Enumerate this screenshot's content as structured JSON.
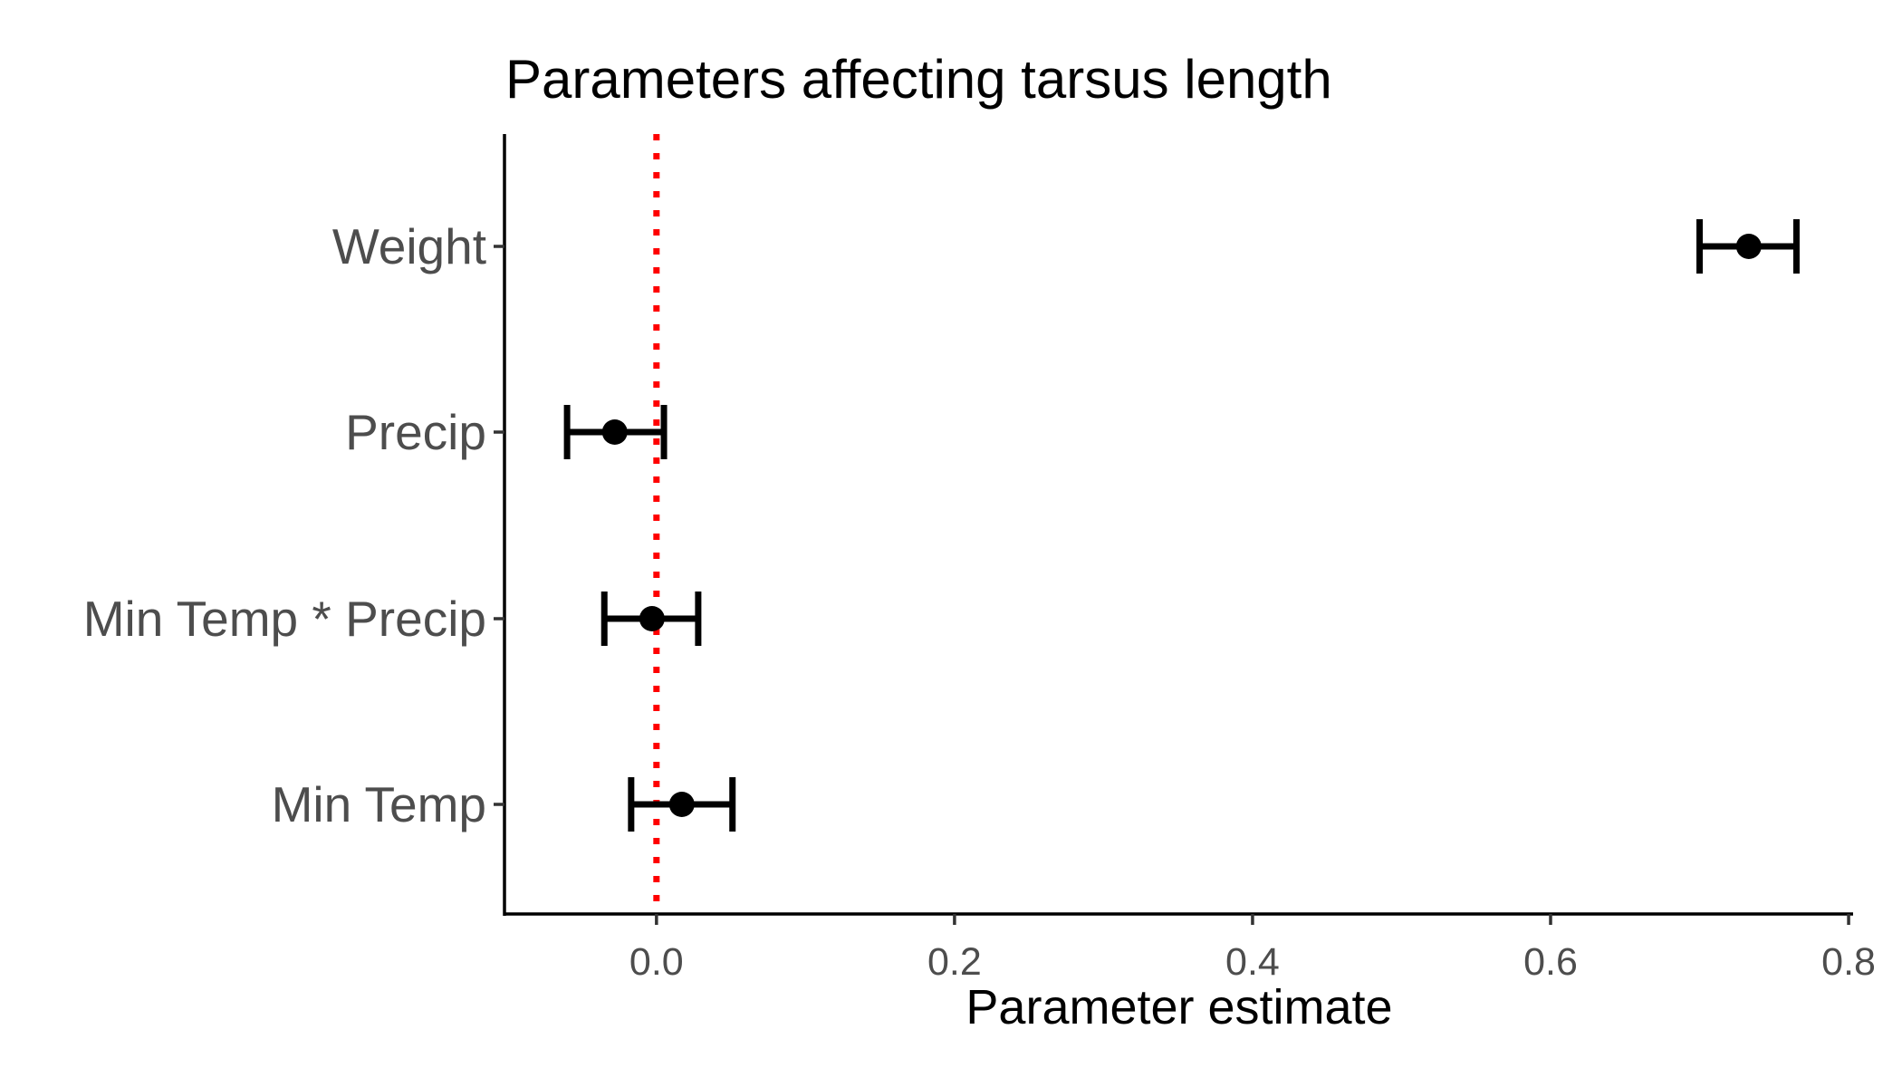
{
  "chart_data": {
    "type": "errorbar",
    "title": "Parameters affecting tarsus length",
    "xlabel": "Parameter estimate",
    "ylabel": "",
    "categories": [
      "Weight",
      "Precip",
      "Min Temp * Precip",
      "Min Temp"
    ],
    "estimates": [
      0.733,
      -0.028,
      -0.003,
      0.017
    ],
    "lower": [
      0.7,
      -0.06,
      -0.035,
      -0.017
    ],
    "upper": [
      0.765,
      0.005,
      0.028,
      0.051
    ],
    "xlim": [
      -0.102,
      0.803
    ],
    "xticks": [
      0.0,
      0.2,
      0.4,
      0.6,
      0.8
    ],
    "xtick_labels": [
      "0.0",
      "0.2",
      "0.4",
      "0.6",
      "0.8"
    ],
    "reference_line": {
      "x": 0.0,
      "style": "dotted",
      "color": "#ff0000"
    },
    "grid": false,
    "legend": "none",
    "point_color": "#000000"
  }
}
